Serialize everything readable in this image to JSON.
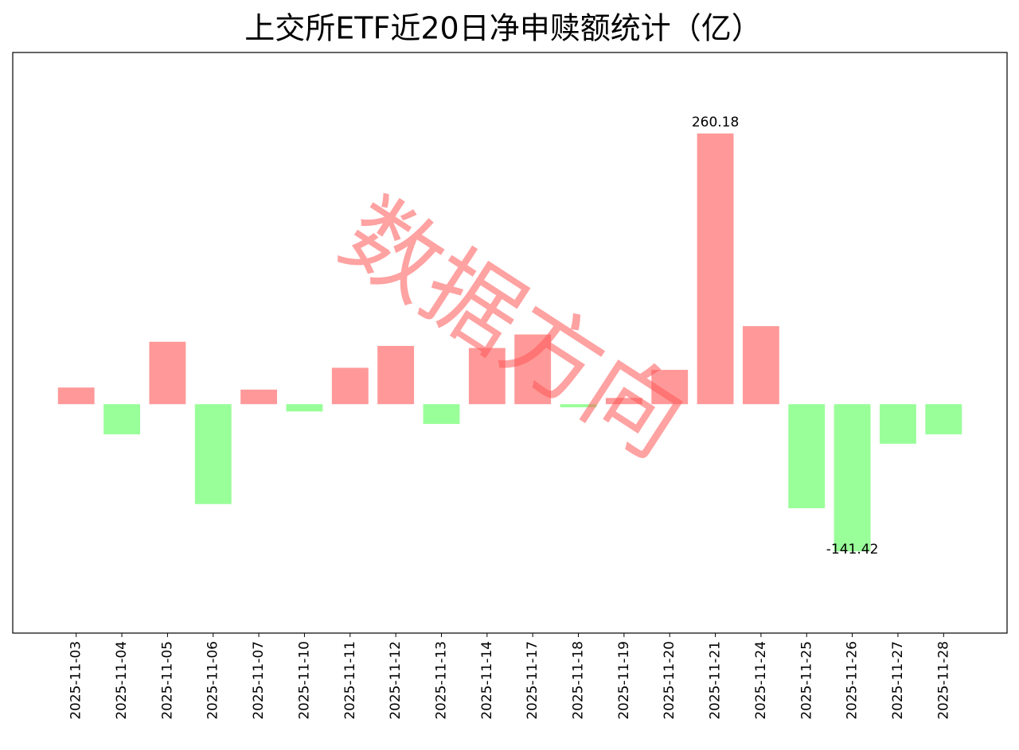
{
  "chart_data": {
    "type": "bar",
    "title": "上交所ETF近20日净申赎额统计（亿）",
    "categories": [
      "2025-11-03",
      "2025-11-04",
      "2025-11-05",
      "2025-11-06",
      "2025-11-07",
      "2025-11-10",
      "2025-11-11",
      "2025-11-12",
      "2025-11-13",
      "2025-11-14",
      "2025-11-17",
      "2025-11-18",
      "2025-11-19",
      "2025-11-20",
      "2025-11-21",
      "2025-11-24",
      "2025-11-25",
      "2025-11-26",
      "2025-11-27",
      "2025-11-28"
    ],
    "values": [
      16,
      -29,
      60,
      -96,
      14,
      -7,
      35,
      56,
      -19,
      54,
      67,
      -3,
      6,
      33,
      260.18,
      75,
      -100,
      -141.42,
      -38,
      -29
    ],
    "value_labels": [
      null,
      null,
      null,
      null,
      null,
      null,
      null,
      null,
      null,
      null,
      null,
      null,
      null,
      null,
      "260.18",
      null,
      null,
      "-141.42",
      null,
      null
    ],
    "color_positive": "#ff9999",
    "color_negative": "#99ff99",
    "ylim": [
      -220,
      338
    ],
    "watermark": "数据方向"
  }
}
